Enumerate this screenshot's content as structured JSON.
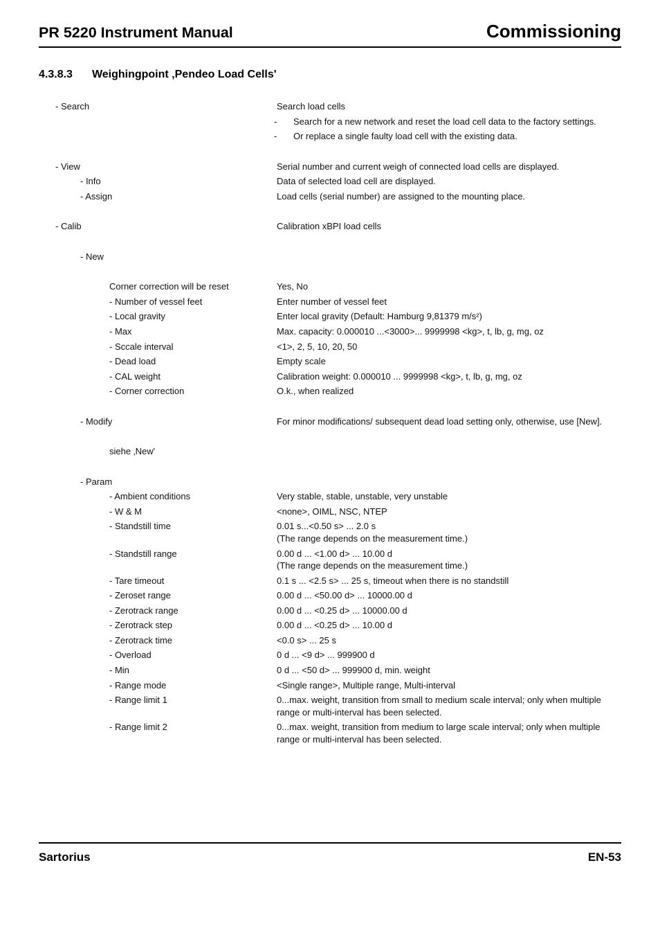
{
  "header": {
    "left": "PR 5220 Instrument Manual",
    "right": "Commissioning"
  },
  "section": {
    "number": "4.3.8.3",
    "title": "Weighingpoint ‚Pendeo Load Cells'"
  },
  "tree": {
    "search": {
      "label": "- Search",
      "desc": "Search load cells",
      "sub1": "Search for a new network and reset the load cell data to the factory settings.",
      "sub2": "Or replace a single faulty load cell with the existing data."
    },
    "view": {
      "label": "- View",
      "desc": "Serial number and current weigh of connected load cells are displayed.",
      "info": {
        "label": "- Info",
        "desc": "Data of selected load cell are displayed."
      },
      "assign": {
        "label": "- Assign",
        "desc": "Load cells (serial number) are assigned to the mounting place."
      }
    },
    "calib": {
      "label": "- Calib",
      "desc": "Calibration xBPI load cells",
      "new": {
        "label": "- New",
        "corner_reset": {
          "label": "Corner correction will be reset",
          "desc": "Yes, No"
        },
        "num_feet": {
          "label": "- Number of vessel feet",
          "desc": "Enter number of vessel feet"
        },
        "local_grav": {
          "label": "- Local gravity",
          "desc": "Enter local gravity (Default: Hamburg 9,81379 m/s²)"
        },
        "max": {
          "label": "- Max",
          "desc": "Max. capacity: 0.000010 ...<3000>... 9999998 <kg>, t, lb, g, mg, oz"
        },
        "interval": {
          "label": "- Sccale interval",
          "desc": "<1>, 2, 5, 10, 20, 50"
        },
        "dead": {
          "label": "- Dead load",
          "desc": "Empty scale"
        },
        "cal_w": {
          "label": "- CAL weight",
          "desc": "Calibration weight: 0.000010 ... 9999998  <kg>, t, lb, g, mg, oz"
        },
        "corner_c": {
          "label": "- Corner correction",
          "desc": "O.k., when realized"
        }
      },
      "modify": {
        "label": "- Modify",
        "desc": "For minor modifications/ subsequent dead load setting only, otherwise, use [New].",
        "see": {
          "label": "siehe ‚New'"
        }
      },
      "param": {
        "label": "- Param",
        "ambient": {
          "label": "- Ambient conditions",
          "desc": "Very stable, stable, unstable, very unstable"
        },
        "wm": {
          "label": "- W & M",
          "desc": "<none>, OIML, NSC, NTEP"
        },
        "still_t": {
          "label": "- Standstill time",
          "desc": "0.01 s...<0.50 s> ... 2.0 s",
          "desc2": "(The range depends on the measurement time.)"
        },
        "still_r": {
          "label": "- Standstill range",
          "desc": "0.00 d ... <1.00 d> ... 10.00 d",
          "desc2": "(The range depends on the measurement time.)"
        },
        "tare": {
          "label": "- Tare timeout",
          "desc": "0.1 s ... <2.5 s> ... 25 s, timeout when there is no standstill"
        },
        "zset": {
          "label": "- Zeroset range",
          "desc": "0.00 d ... <50.00 d> ... 10000.00 d"
        },
        "ztrk_r": {
          "label": "- Zerotrack range",
          "desc": "0.00 d ... <0.25 d> ... 10000.00 d"
        },
        "ztrk_s": {
          "label": "- Zerotrack step",
          "desc": "0.00 d ... <0.25 d> ... 10.00 d"
        },
        "ztrk_t": {
          "label": "- Zerotrack time",
          "desc": "<0.0 s> ... 25 s"
        },
        "ovl": {
          "label": "- Overload",
          "desc": "0 d ... <9 d> ... 999900 d"
        },
        "min": {
          "label": "- Min",
          "desc": "0 d ... <50 d> ... 999900 d, min. weight"
        },
        "rmode": {
          "label": "- Range mode",
          "desc": "<Single range>, Multiple range, Multi-interval"
        },
        "rlim1": {
          "label": "- Range limit 1",
          "desc": "0...max. weight, transition from small to medium scale interval; only when multiple range or multi-interval has been selected."
        },
        "rlim2": {
          "label": "- Range limit 2",
          "desc": "0...max. weight, transition from medium to large scale interval; only when multiple range or multi-interval has been selected."
        }
      }
    }
  },
  "footer": {
    "left": "Sartorius",
    "right": "EN-53"
  },
  "style": {
    "indent0": 0,
    "indent1": 36,
    "indent2": 78,
    "indent2b": 62
  }
}
